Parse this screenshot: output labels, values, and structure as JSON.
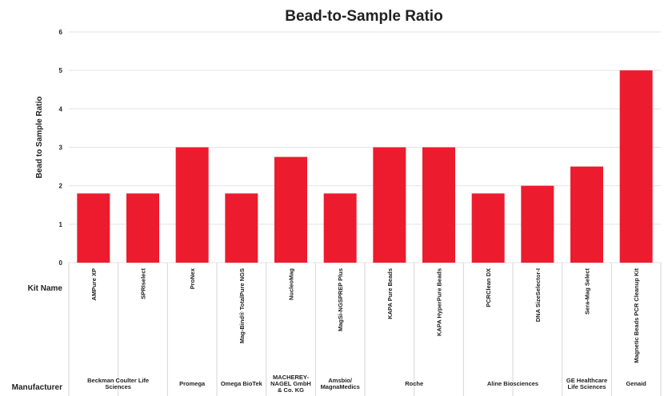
{
  "chart_data": {
    "type": "bar",
    "title": "Bead-to-Sample Ratio",
    "ylabel": "Bead to Sample Ratio",
    "ylim": [
      0,
      6
    ],
    "yticks": [
      0,
      1,
      2,
      3,
      4,
      5,
      6
    ],
    "grid": true,
    "color": "#ec1c2e",
    "row_labels": {
      "kit": "Kit Name",
      "manufacturer": "Manufacturer"
    },
    "categories": [
      "AMPure XP",
      "SPRIselect",
      "ProNex",
      "Mag-Bind® TotalPure NGS",
      "NucleoMag",
      "MagSi-NGSPREP Plus",
      "KAPA Pure Beads",
      "KAPA HyperPure Beads",
      "PCRClean DX",
      "DNA SizeSelector-I",
      "Sera-Mag Select",
      "Magnetic Beads PCR Cleanup Kit"
    ],
    "values": [
      1.8,
      1.8,
      3.0,
      1.8,
      2.75,
      1.8,
      3.0,
      3.0,
      1.8,
      2.0,
      2.5,
      5.0
    ],
    "manufacturers": [
      {
        "name_lines": [
          "Beckman Coulter Life",
          "Sciences"
        ],
        "span": 2
      },
      {
        "name_lines": [
          "Promega"
        ],
        "span": 1
      },
      {
        "name_lines": [
          "Omega BioTek"
        ],
        "span": 1
      },
      {
        "name_lines": [
          "MACHEREY-",
          "NAGEL GmbH",
          "& Co. KG"
        ],
        "span": 1
      },
      {
        "name_lines": [
          "Amsbio/",
          "MagnaMedics"
        ],
        "span": 1
      },
      {
        "name_lines": [
          "Roche"
        ],
        "span": 2
      },
      {
        "name_lines": [
          "Aline Biosciences"
        ],
        "span": 2
      },
      {
        "name_lines": [
          "GE Healthcare",
          "Life Sciences"
        ],
        "span": 1
      },
      {
        "name_lines": [
          "Genaid"
        ],
        "span": 1
      }
    ]
  }
}
